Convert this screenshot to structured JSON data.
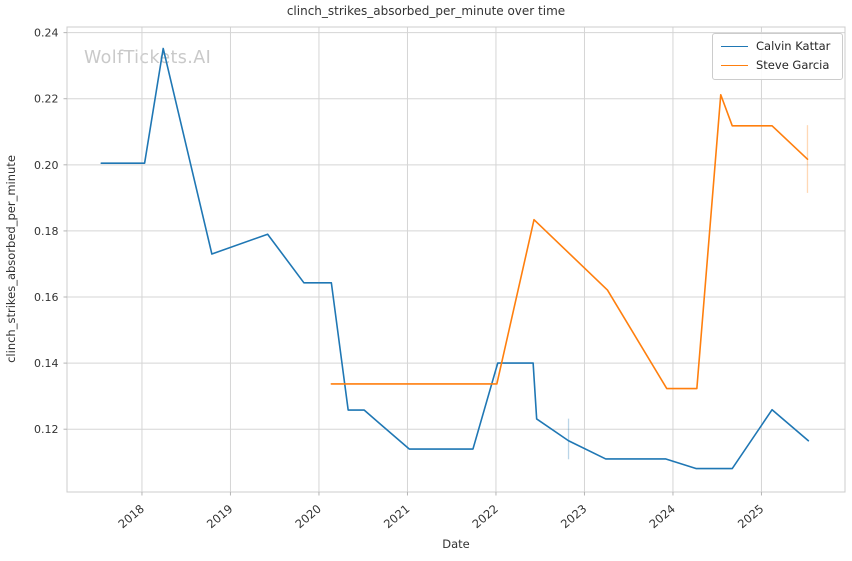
{
  "chart_data": {
    "type": "line",
    "title": "clinch_strikes_absorbed_per_minute over time",
    "xlabel": "Date",
    "ylabel": "clinch_strikes_absorbed_per_minute",
    "watermark": "WolfTickets.AI",
    "grid": true,
    "legend_position": "upper right",
    "xlim": [
      2017.153,
      2025.944
    ],
    "ylim": [
      0.101,
      0.2417
    ],
    "x_tick_values": [
      2018,
      2019,
      2020,
      2021,
      2022,
      2023,
      2024,
      2025
    ],
    "x_tick_labels": [
      "2018",
      "2019",
      "2020",
      "2021",
      "2022",
      "2023",
      "2024",
      "2025"
    ],
    "y_tick_values": [
      0.12,
      0.14,
      0.16,
      0.18,
      0.2,
      0.22,
      0.24
    ],
    "y_tick_labels": [
      "0.12",
      "0.14",
      "0.16",
      "0.18",
      "0.20",
      "0.22",
      "0.24"
    ],
    "series": [
      {
        "name": "Calvin Kattar",
        "color": "#1f77b4",
        "points": [
          [
            2017.54,
            0.2005
          ],
          [
            2018.03,
            0.2005
          ],
          [
            2018.24,
            0.2352
          ],
          [
            2018.79,
            0.173
          ],
          [
            2019.42,
            0.179
          ],
          [
            2019.83,
            0.1643
          ],
          [
            2020.14,
            0.1643
          ],
          [
            2020.33,
            0.1258
          ],
          [
            2020.51,
            0.1258
          ],
          [
            2021.02,
            0.114
          ],
          [
            2021.74,
            0.114
          ],
          [
            2022.02,
            0.14
          ],
          [
            2022.42,
            0.14
          ],
          [
            2022.46,
            0.1231
          ],
          [
            2022.82,
            0.1165
          ],
          [
            2023.24,
            0.111
          ],
          [
            2023.92,
            0.111
          ],
          [
            2024.26,
            0.1081
          ],
          [
            2024.67,
            0.1081
          ],
          [
            2025.12,
            0.1259
          ],
          [
            2025.53,
            0.1165
          ]
        ],
        "error_bars": [
          {
            "x": 2022.82,
            "y_low": 0.1109,
            "y_high": 0.1232
          }
        ]
      },
      {
        "name": "Steve Garcia",
        "color": "#ff7f0e",
        "points": [
          [
            2020.14,
            0.1337
          ],
          [
            2022.01,
            0.1337
          ],
          [
            2022.43,
            0.1834
          ],
          [
            2023.26,
            0.1621
          ],
          [
            2023.93,
            0.1323
          ],
          [
            2024.27,
            0.1323
          ],
          [
            2024.54,
            0.2212
          ],
          [
            2024.67,
            0.2118
          ],
          [
            2025.12,
            0.2118
          ],
          [
            2025.52,
            0.2017
          ]
        ],
        "error_bars": [
          {
            "x": 2025.52,
            "y_low": 0.1915,
            "y_high": 0.212
          }
        ]
      }
    ],
    "colors": {
      "grid": "#d5d5d5",
      "spine": "#cccccc",
      "tick_mark": "#b5b5b5",
      "text": "#333333",
      "watermark": "#c9c9c9"
    }
  }
}
